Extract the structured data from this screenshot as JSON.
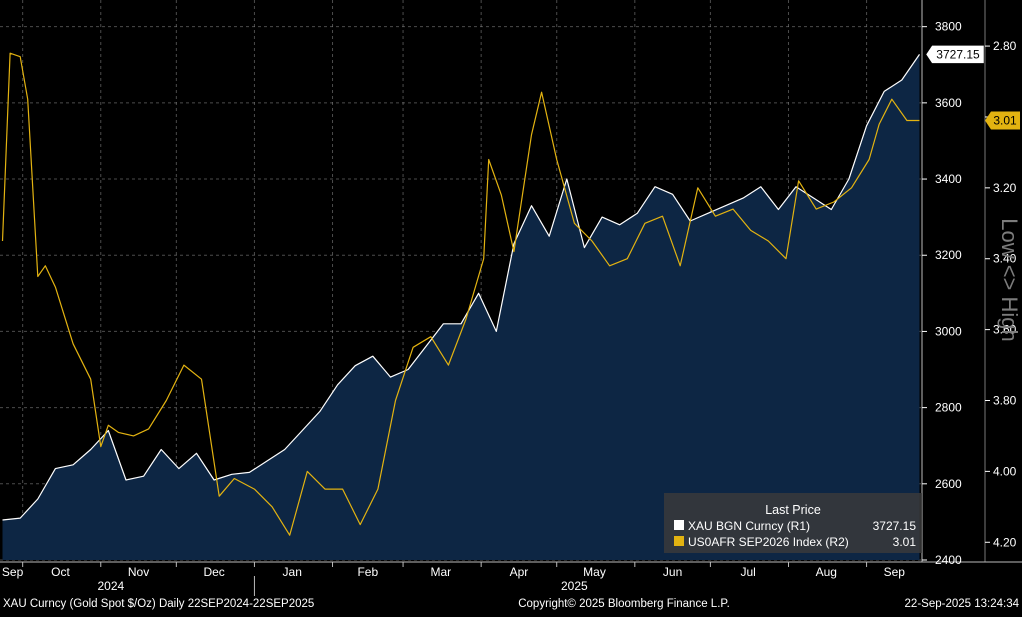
{
  "chart_data": {
    "type": "line",
    "x_range": [
      "2024-09-22",
      "2025-09-22"
    ],
    "x_ticks": [
      "Sep",
      "Oct",
      "Nov",
      "Dec",
      "Jan",
      "Feb",
      "Mar",
      "Apr",
      "May",
      "Jun",
      "Jul",
      "Aug",
      "Sep"
    ],
    "year_labels": [
      "2024",
      "2025"
    ],
    "y_right_1": {
      "ticks": [
        2400,
        2600,
        2800,
        3000,
        3200,
        3400,
        3600,
        3800
      ],
      "labels": [
        "2400",
        "2600",
        "2800",
        "3000",
        "3200",
        "3400",
        "3600",
        "3800"
      ],
      "range": [
        2400,
        3870
      ]
    },
    "y_right_2": {
      "ticks": [
        2.8,
        3.0,
        3.2,
        3.4,
        3.6,
        3.8,
        4.0,
        4.2
      ],
      "labels": [
        "2.80",
        "3.00",
        "3.20",
        "3.40",
        "3.60",
        "3.80",
        "4.00",
        "4.20"
      ],
      "inverted": true,
      "range": [
        2.67,
        4.25
      ]
    },
    "side_label": "Low <> High",
    "grid": true,
    "legend_position": "bottom-right",
    "legend": {
      "header": "Last Price",
      "rows": [
        {
          "name": "XAU BGN Curncy  (R1)",
          "value": "3727.15",
          "color": "#ffffff"
        },
        {
          "name": "US0AFR SEP2026 Index  (R2)",
          "value": "3.01",
          "color": "#e3b311"
        }
      ]
    },
    "series": [
      {
        "name": "XAU BGN Curncy",
        "axis": "R1",
        "style": "area",
        "line_color": "#ffffff",
        "fill_color": "#0d2644",
        "last_value_label": "3727.15",
        "points": [
          [
            "2024-09-23",
            2505
          ],
          [
            "2024-09-30",
            2510
          ],
          [
            "2024-10-07",
            2560
          ],
          [
            "2024-10-14",
            2640
          ],
          [
            "2024-10-21",
            2650
          ],
          [
            "2024-10-28",
            2690
          ],
          [
            "2024-11-04",
            2740
          ],
          [
            "2024-11-11",
            2610
          ],
          [
            "2024-11-18",
            2620
          ],
          [
            "2024-11-25",
            2690
          ],
          [
            "2024-12-02",
            2640
          ],
          [
            "2024-12-09",
            2680
          ],
          [
            "2024-12-16",
            2610
          ],
          [
            "2024-12-23",
            2625
          ],
          [
            "2024-12-30",
            2630
          ],
          [
            "2025-01-06",
            2660
          ],
          [
            "2025-01-13",
            2690
          ],
          [
            "2025-01-20",
            2740
          ],
          [
            "2025-01-27",
            2790
          ],
          [
            "2025-02-03",
            2860
          ],
          [
            "2025-02-10",
            2910
          ],
          [
            "2025-02-17",
            2935
          ],
          [
            "2025-02-24",
            2880
          ],
          [
            "2025-03-03",
            2900
          ],
          [
            "2025-03-10",
            2960
          ],
          [
            "2025-03-17",
            3020
          ],
          [
            "2025-03-24",
            3020
          ],
          [
            "2025-03-31",
            3100
          ],
          [
            "2025-04-07",
            3000
          ],
          [
            "2025-04-14",
            3230
          ],
          [
            "2025-04-21",
            3330
          ],
          [
            "2025-04-28",
            3250
          ],
          [
            "2025-05-05",
            3400
          ],
          [
            "2025-05-12",
            3220
          ],
          [
            "2025-05-19",
            3300
          ],
          [
            "2025-05-26",
            3280
          ],
          [
            "2025-06-02",
            3310
          ],
          [
            "2025-06-09",
            3380
          ],
          [
            "2025-06-16",
            3360
          ],
          [
            "2025-06-23",
            3290
          ],
          [
            "2025-06-30",
            3310
          ],
          [
            "2025-07-07",
            3330
          ],
          [
            "2025-07-14",
            3350
          ],
          [
            "2025-07-21",
            3380
          ],
          [
            "2025-07-28",
            3320
          ],
          [
            "2025-08-04",
            3380
          ],
          [
            "2025-08-11",
            3350
          ],
          [
            "2025-08-18",
            3320
          ],
          [
            "2025-08-25",
            3400
          ],
          [
            "2025-09-01",
            3540
          ],
          [
            "2025-09-08",
            3630
          ],
          [
            "2025-09-15",
            3660
          ],
          [
            "2025-09-22",
            3727.15
          ]
        ]
      },
      {
        "name": "US0AFR SEP2026 Index",
        "axis": "R2",
        "style": "line",
        "line_color": "#e3b311",
        "last_value_label": "3.01",
        "points": [
          [
            "2024-09-23",
            3.35
          ],
          [
            "2024-09-26",
            2.82
          ],
          [
            "2024-09-30",
            2.83
          ],
          [
            "2024-10-03",
            2.95
          ],
          [
            "2024-10-07",
            3.45
          ],
          [
            "2024-10-10",
            3.42
          ],
          [
            "2024-10-14",
            3.48
          ],
          [
            "2024-10-21",
            3.64
          ],
          [
            "2024-10-28",
            3.74
          ],
          [
            "2024-11-01",
            3.93
          ],
          [
            "2024-11-04",
            3.87
          ],
          [
            "2024-11-08",
            3.89
          ],
          [
            "2024-11-14",
            3.9
          ],
          [
            "2024-11-20",
            3.88
          ],
          [
            "2024-11-27",
            3.8
          ],
          [
            "2024-12-04",
            3.7
          ],
          [
            "2024-12-11",
            3.74
          ],
          [
            "2024-12-18",
            4.07
          ],
          [
            "2024-12-24",
            4.02
          ],
          [
            "2025-01-01",
            4.05
          ],
          [
            "2025-01-08",
            4.1
          ],
          [
            "2025-01-15",
            4.18
          ],
          [
            "2025-01-22",
            4.0
          ],
          [
            "2025-01-29",
            4.05
          ],
          [
            "2025-02-05",
            4.05
          ],
          [
            "2025-02-12",
            4.15
          ],
          [
            "2025-02-19",
            4.05
          ],
          [
            "2025-02-26",
            3.8
          ],
          [
            "2025-03-05",
            3.65
          ],
          [
            "2025-03-12",
            3.62
          ],
          [
            "2025-03-19",
            3.7
          ],
          [
            "2025-03-26",
            3.57
          ],
          [
            "2025-04-02",
            3.4
          ],
          [
            "2025-04-04",
            3.12
          ],
          [
            "2025-04-09",
            3.22
          ],
          [
            "2025-04-14",
            3.38
          ],
          [
            "2025-04-21",
            3.05
          ],
          [
            "2025-04-25",
            2.93
          ],
          [
            "2025-05-01",
            3.12
          ],
          [
            "2025-05-08",
            3.3
          ],
          [
            "2025-05-15",
            3.35
          ],
          [
            "2025-05-22",
            3.42
          ],
          [
            "2025-05-29",
            3.4
          ],
          [
            "2025-06-05",
            3.3
          ],
          [
            "2025-06-12",
            3.28
          ],
          [
            "2025-06-19",
            3.42
          ],
          [
            "2025-06-26",
            3.2
          ],
          [
            "2025-07-03",
            3.28
          ],
          [
            "2025-07-10",
            3.26
          ],
          [
            "2025-07-17",
            3.32
          ],
          [
            "2025-07-24",
            3.35
          ],
          [
            "2025-07-31",
            3.4
          ],
          [
            "2025-08-05",
            3.18
          ],
          [
            "2025-08-12",
            3.26
          ],
          [
            "2025-08-19",
            3.24
          ],
          [
            "2025-08-26",
            3.2
          ],
          [
            "2025-09-02",
            3.12
          ],
          [
            "2025-09-06",
            3.02
          ],
          [
            "2025-09-11",
            2.95
          ],
          [
            "2025-09-17",
            3.01
          ],
          [
            "2025-09-22",
            3.01
          ]
        ]
      }
    ]
  },
  "footer": {
    "left": "XAU Curncy (Gold Spot  $/Oz)  Daily 22SEP2024-22SEP2025",
    "center": "Copyright© 2025 Bloomberg Finance L.P.",
    "right": "22-Sep-2025 13:24:34"
  }
}
